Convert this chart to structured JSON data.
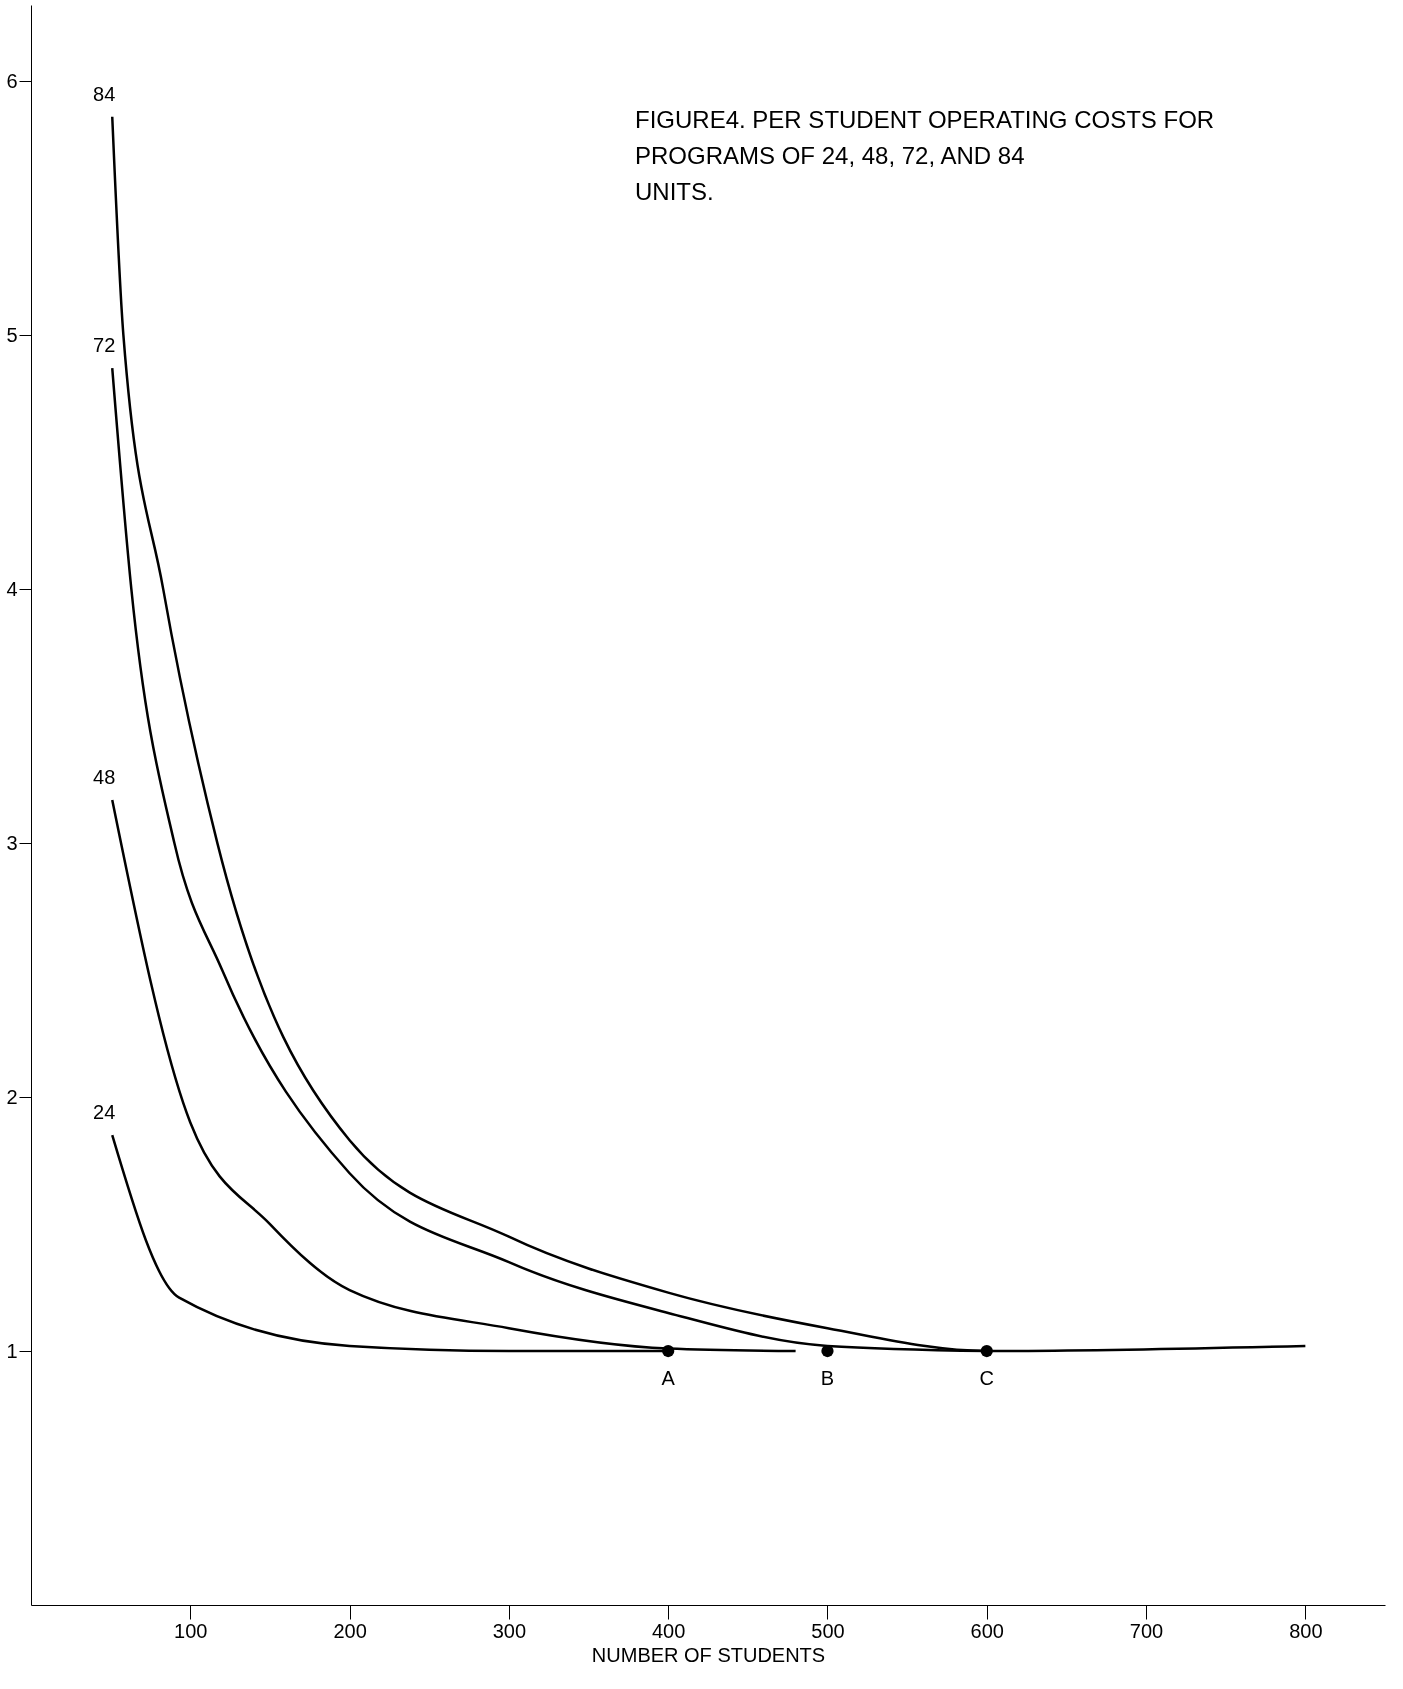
{
  "chart_data": {
    "type": "line",
    "title": [
      "FIGURE4.  PER STUDENT OPERATING  COSTS FOR",
      "PROGRAMS OF 24, 48, 72,  AND 84",
      "UNITS."
    ],
    "xlabel": "NUMBER OF STUDENTS",
    "xlim": [
      0,
      850
    ],
    "xticks": [
      100,
      200,
      300,
      400,
      500,
      600,
      700,
      800
    ],
    "ylim": [
      0,
      6.3
    ],
    "yticks": [
      1,
      2,
      3,
      4,
      5,
      6
    ],
    "grid": false,
    "line_style": "solid",
    "series": [
      {
        "name": "84",
        "color": "#000000",
        "x": [
          51,
          58,
          83,
          117,
          200,
          300,
          400,
          500,
          600,
          800
        ],
        "values": [
          5.86,
          5.0,
          4.0,
          3.0,
          1.83,
          1.45,
          1.23,
          1.09,
          1.0,
          1.02
        ]
      },
      {
        "name": "72",
        "color": "#000000",
        "x": [
          51,
          63,
          90,
          120,
          200,
          300,
          400,
          500,
          600
        ],
        "values": [
          4.87,
          4.0,
          3.0,
          2.5,
          1.7,
          1.35,
          1.15,
          1.02,
          1.0
        ]
      },
      {
        "name": "48",
        "color": "#000000",
        "x": [
          51,
          100,
          150,
          200,
          300,
          400,
          480
        ],
        "values": [
          3.17,
          1.9,
          1.5,
          1.24,
          1.09,
          1.01,
          1.0
        ]
      },
      {
        "name": "24",
        "color": "#000000",
        "x": [
          51,
          93,
          200,
          300,
          400
        ],
        "values": [
          1.85,
          1.21,
          1.02,
          1.0,
          1.0
        ]
      },
      {
        "type": "scatter",
        "color": "#000000",
        "x": [
          400,
          500,
          600
        ],
        "values": [
          1,
          1,
          1
        ]
      }
    ],
    "annotations": [
      {
        "text": "A",
        "x": 400,
        "y": 1
      },
      {
        "text": "B",
        "x": 500,
        "y": 1
      },
      {
        "text": "C",
        "x": 600,
        "y": 1
      }
    ]
  }
}
